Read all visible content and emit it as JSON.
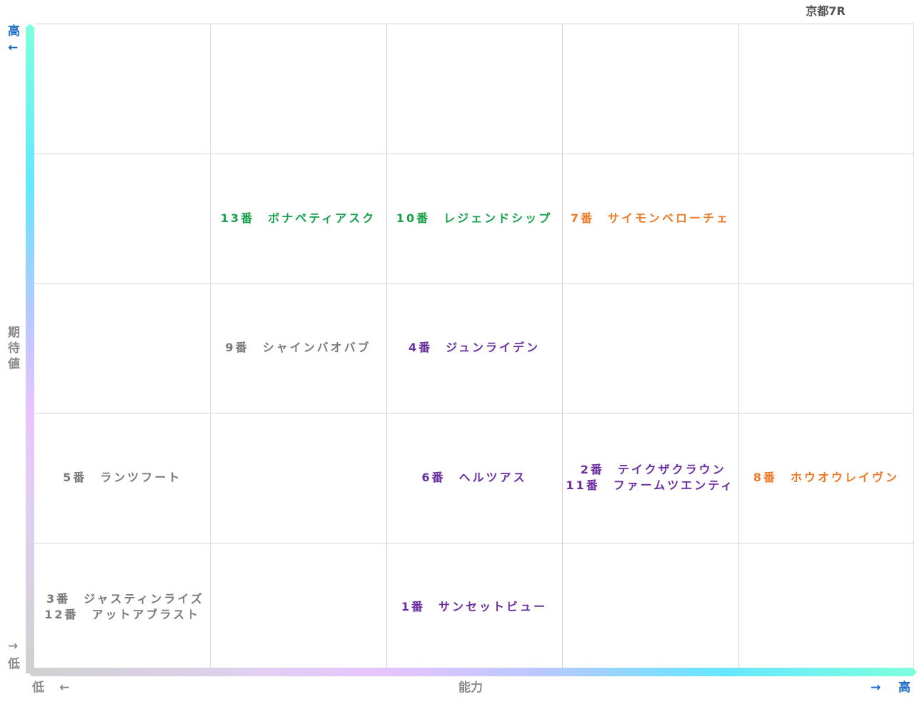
{
  "title": "京都7R",
  "axes": {
    "y_label": "期待値",
    "y_high": "高",
    "y_high_arrow": "←",
    "y_low": "低",
    "y_low_arrow": "→",
    "x_label": "能力",
    "x_low": "低",
    "x_low_arrow": "←",
    "x_high": "高",
    "x_high_arrow": "→"
  },
  "colors": {
    "green": "#16a04a",
    "orange": "#ec7a26",
    "purple": "#6b2fa0",
    "gray": "#7a7a7a",
    "axis_label": "#1b6cc4"
  },
  "grid": {
    "rows": 5,
    "cols": 5
  },
  "cells": [
    {
      "row": 2,
      "col": 2,
      "color": "green",
      "entries": [
        "13番　ボナペティアスク"
      ]
    },
    {
      "row": 2,
      "col": 3,
      "color": "green",
      "entries": [
        "10番　レジェンドシップ"
      ]
    },
    {
      "row": 2,
      "col": 4,
      "color": "orange",
      "entries": [
        "7番　サイモンベローチェ"
      ]
    },
    {
      "row": 3,
      "col": 2,
      "color": "gray",
      "entries": [
        "9番　シャインバオバブ"
      ]
    },
    {
      "row": 3,
      "col": 3,
      "color": "purple",
      "entries": [
        "4番　ジュンライデン"
      ]
    },
    {
      "row": 4,
      "col": 1,
      "color": "gray",
      "entries": [
        "5番　ランツフート"
      ]
    },
    {
      "row": 4,
      "col": 3,
      "color": "purple",
      "entries": [
        "6番　ヘルツアス"
      ]
    },
    {
      "row": 4,
      "col": 4,
      "color": "purple",
      "entries": [
        " 2番　テイクザクラウン",
        "11番　ファームツエンティ"
      ]
    },
    {
      "row": 4,
      "col": 5,
      "color": "orange",
      "entries": [
        "8番　ホウオウレイヴン"
      ]
    },
    {
      "row": 5,
      "col": 1,
      "color": "gray",
      "entries": [
        " 3番　ジャスティンライズ",
        "12番　アットアブラスト"
      ]
    },
    {
      "row": 5,
      "col": 3,
      "color": "purple",
      "entries": [
        "1番　サンセットビュー"
      ]
    }
  ]
}
